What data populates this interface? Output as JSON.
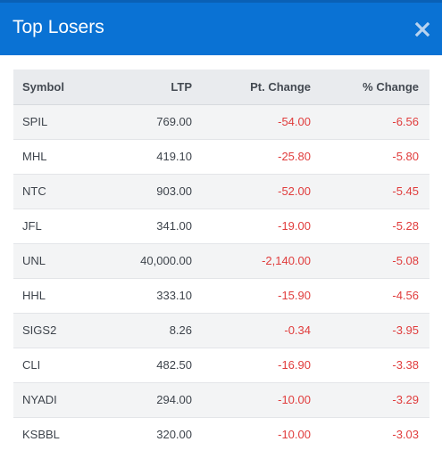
{
  "modal": {
    "title": "Top Losers",
    "close_icon": "close-icon"
  },
  "table": {
    "headers": {
      "symbol": "Symbol",
      "ltp": "LTP",
      "pt_change": "Pt. Change",
      "pct_change": "% Change"
    },
    "rows": [
      {
        "symbol": "SPIL",
        "ltp": "769.00",
        "pt_change": "-54.00",
        "pct_change": "-6.56"
      },
      {
        "symbol": "MHL",
        "ltp": "419.10",
        "pt_change": "-25.80",
        "pct_change": "-5.80"
      },
      {
        "symbol": "NTC",
        "ltp": "903.00",
        "pt_change": "-52.00",
        "pct_change": "-5.45"
      },
      {
        "symbol": "JFL",
        "ltp": "341.00",
        "pt_change": "-19.00",
        "pct_change": "-5.28"
      },
      {
        "symbol": "UNL",
        "ltp": "40,000.00",
        "pt_change": "-2,140.00",
        "pct_change": "-5.08"
      },
      {
        "symbol": "HHL",
        "ltp": "333.10",
        "pt_change": "-15.90",
        "pct_change": "-4.56"
      },
      {
        "symbol": "SIGS2",
        "ltp": "8.26",
        "pt_change": "-0.34",
        "pct_change": "-3.95"
      },
      {
        "symbol": "CLI",
        "ltp": "482.50",
        "pt_change": "-16.90",
        "pct_change": "-3.38"
      },
      {
        "symbol": "NYADI",
        "ltp": "294.00",
        "pt_change": "-10.00",
        "pct_change": "-3.29"
      },
      {
        "symbol": "KSBBL",
        "ltp": "320.00",
        "pt_change": "-10.00",
        "pct_change": "-3.03"
      }
    ]
  },
  "colors": {
    "header_bg": "#0a72d4",
    "negative": "#e03c3c"
  }
}
